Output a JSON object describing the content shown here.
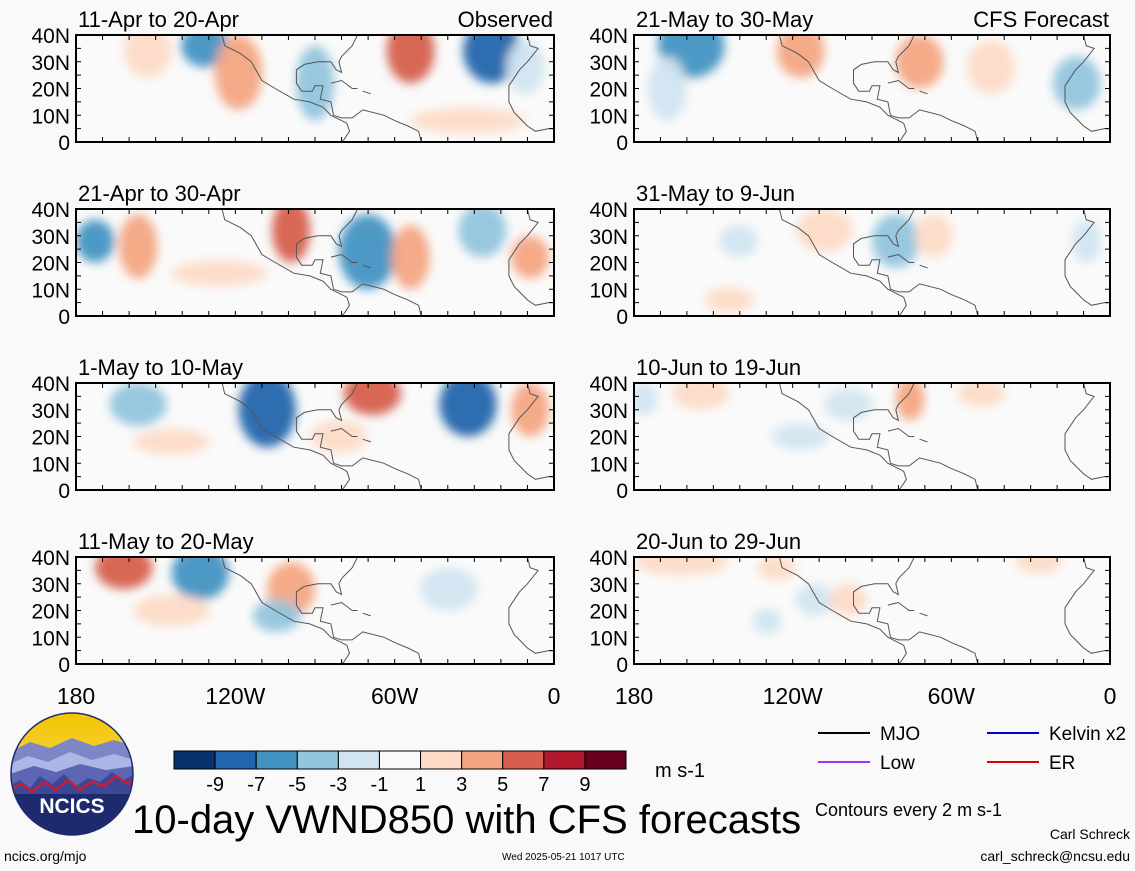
{
  "header": {
    "left_label": "Observed",
    "right_label": "CFS Forecast"
  },
  "panels": [
    {
      "period": "11-Apr to 20-Apr",
      "column": "observed",
      "row": 0
    },
    {
      "period": "21-Apr to 30-Apr",
      "column": "observed",
      "row": 1
    },
    {
      "period": "1-May to 10-May",
      "column": "observed",
      "row": 2
    },
    {
      "period": "11-May to 20-May",
      "column": "observed",
      "row": 3
    },
    {
      "period": "21-May to 30-May",
      "column": "forecast",
      "row": 0
    },
    {
      "period": "31-May to 9-Jun",
      "column": "forecast",
      "row": 1
    },
    {
      "period": "10-Jun to 19-Jun",
      "column": "forecast",
      "row": 2
    },
    {
      "period": "20-Jun to 29-Jun",
      "column": "forecast",
      "row": 3
    }
  ],
  "chart_data": {
    "type": "heatmap",
    "title": "10-day VWND850 with CFS forecasts",
    "variable": "VWND850",
    "units": "m s-1",
    "contour_note": "Contours every 2 m s-1",
    "y_ticks": [
      "40N",
      "30N",
      "20N",
      "10N",
      "0"
    ],
    "x_ticks": [
      "180",
      "120W",
      "60W",
      "0"
    ],
    "lon_range": [
      -180,
      0
    ],
    "lat_range": [
      0,
      40
    ],
    "colorbar": {
      "ticks": [
        "-9",
        "-7",
        "-5",
        "-3",
        "-1",
        "1",
        "3",
        "5",
        "7",
        "9"
      ],
      "colors": [
        "#08306b",
        "#2166ac",
        "#4393c3",
        "#92c5de",
        "#d1e5f0",
        "#f9f9f9",
        "#fddbc7",
        "#f4a582",
        "#d6604d",
        "#b2182b",
        "#67001f"
      ]
    },
    "legend": [
      {
        "label": "MJO",
        "color": "#000000"
      },
      {
        "label": "Kelvin x2",
        "color": "#0000cc"
      },
      {
        "label": "Low",
        "color": "#9933ff"
      },
      {
        "label": "ER",
        "color": "#e00000"
      }
    ]
  },
  "footer": {
    "logo_text": "NCICS",
    "url": "ncics.org/mjo",
    "timestamp": "Wed 2025-05-21 1017 UTC",
    "author": "Carl Schreck",
    "email": "carl_schreck@ncsu.edu"
  }
}
